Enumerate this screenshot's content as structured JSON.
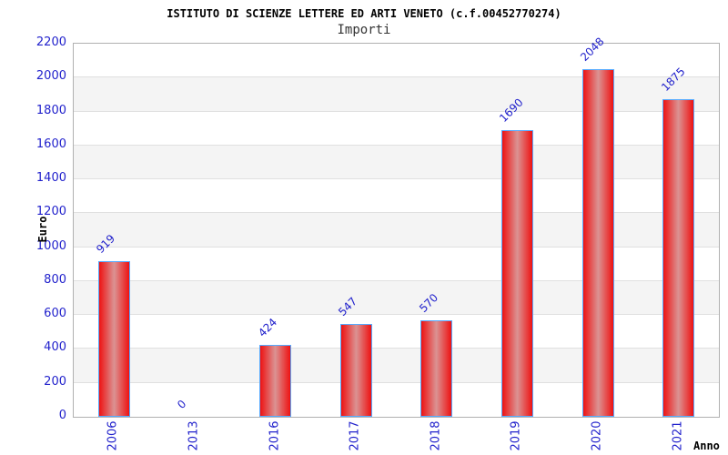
{
  "chart_data": {
    "type": "bar",
    "title": "ISTITUTO DI SCIENZE LETTERE ED ARTI VENETO (c.f.00452770274)",
    "subtitle": "Importi",
    "xlabel": "Anno",
    "ylabel": "Euro",
    "categories": [
      "2006",
      "2013",
      "2016",
      "2017",
      "2018",
      "2019",
      "2020",
      "2021"
    ],
    "values": [
      919,
      0,
      424,
      547,
      570,
      1690,
      2048,
      1875
    ],
    "ylim": [
      0,
      2200
    ],
    "ytick_step": 200,
    "yticks": [
      0,
      200,
      400,
      600,
      800,
      1000,
      1200,
      1400,
      1600,
      1800,
      2000,
      2200
    ],
    "legend": "none",
    "grid": "horizontal-bands",
    "colors": {
      "bar_edge": "#ee1212",
      "bar_center": "#db9393",
      "bar_border": "#55aaff",
      "tick_text": "#2222cc",
      "value_text": "#2222cc",
      "band_gray": "#f4f4f4",
      "gridline": "#e0e0e0",
      "plot_border": "#b0b0b0",
      "title_text": "#000000",
      "subtitle_text": "#333333"
    }
  }
}
